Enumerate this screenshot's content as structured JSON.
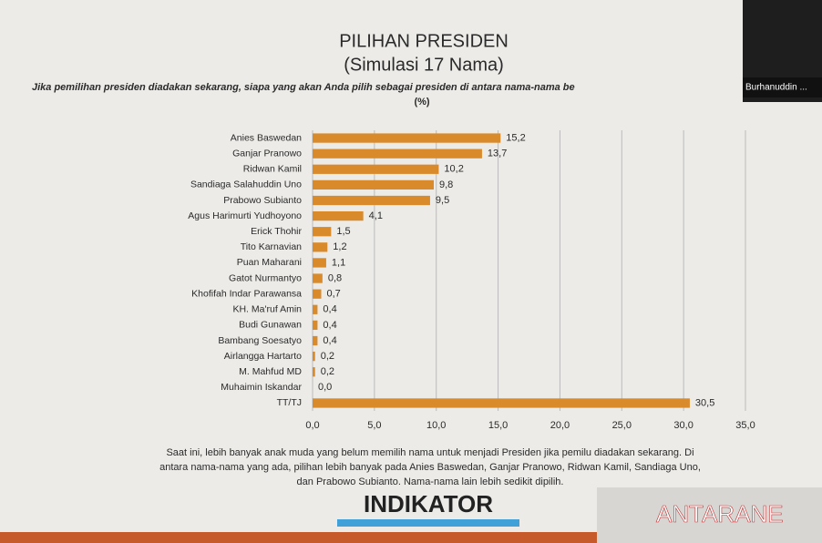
{
  "chart_data": {
    "type": "bar",
    "orientation": "horizontal",
    "title": "PILIHAN PRESIDEN",
    "subtitle": "(Simulasi 17 Nama)",
    "question": "Jika pemilihan presiden diadakan sekarang, siapa yang akan Anda pilih sebagai presiden di antara nama-nama be",
    "unit": "(%)",
    "categories": [
      "Anies Baswedan",
      "Ganjar Pranowo",
      "Ridwan Kamil",
      "Sandiaga Salahuddin Uno",
      "Prabowo Subianto",
      "Agus Harimurti Yudhoyono",
      "Erick Thohir",
      "Tito Karnavian",
      "Puan Maharani",
      "Gatot Nurmantyo",
      "Khofifah Indar Parawansa",
      "KH. Ma'ruf Amin",
      "Budi Gunawan",
      "Bambang Soesatyo",
      "Airlangga Hartarto",
      "M. Mahfud MD",
      "Muhaimin Iskandar",
      "TT/TJ"
    ],
    "values": [
      15.2,
      13.7,
      10.2,
      9.8,
      9.5,
      4.1,
      1.5,
      1.2,
      1.1,
      0.8,
      0.7,
      0.4,
      0.4,
      0.4,
      0.2,
      0.2,
      0.0,
      30.5
    ],
    "value_labels": [
      "15,2",
      "13,7",
      "10,2",
      "9,8",
      "9,5",
      "4,1",
      "1,5",
      "1,2",
      "1,1",
      "0,8",
      "0,7",
      "0,4",
      "0,4",
      "0,4",
      "0,2",
      "0,2",
      "0,0",
      "30,5"
    ],
    "color": "#d98a2b",
    "xlim": [
      0,
      35
    ],
    "xticks": [
      {
        "value": 0,
        "label": "0,0"
      },
      {
        "value": 5,
        "label": "5,0"
      },
      {
        "value": 10,
        "label": "10,0"
      },
      {
        "value": 15,
        "label": "15,0"
      },
      {
        "value": 20,
        "label": "20,0"
      },
      {
        "value": 25,
        "label": "25,0"
      },
      {
        "value": 30,
        "label": "30,0"
      },
      {
        "value": 35,
        "label": "35,0"
      }
    ],
    "grid": true,
    "note": [
      "Saat ini, lebih banyak anak muda yang belum memilih nama untuk menjadi Presiden jika pemilu diadakan sekarang. Di",
      "antara nama-nama yang ada, pilihan lebih banyak pada Anies Baswedan, Ganjar Pranowo, Ridwan Kamil, Sandiaga Uno,",
      "dan Prabowo Subianto. Nama-nama lain lebih sedikit dipilih."
    ]
  },
  "overlay": {
    "name": "Burhanuddin ..."
  },
  "logos": {
    "indikator": "INDIKATOR",
    "antara": "ANTARANE"
  }
}
